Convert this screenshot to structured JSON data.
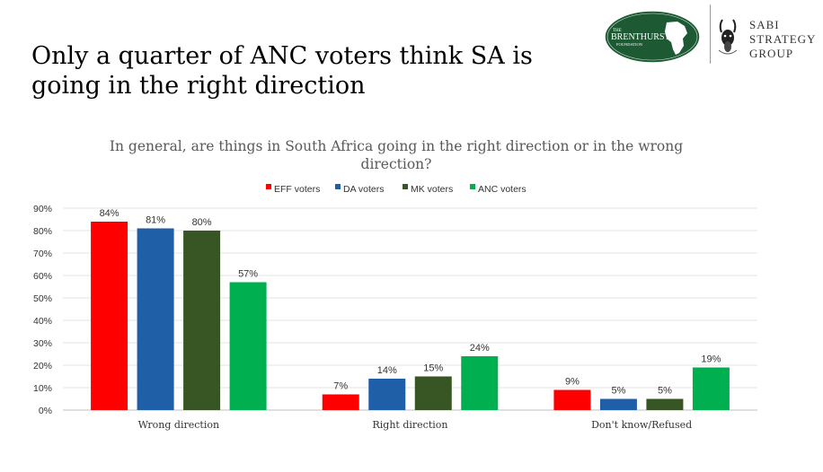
{
  "slide": {
    "title": "Only a quarter of ANC voters think SA is going in the right direction"
  },
  "logos": {
    "brenthurst": {
      "line1": "THE",
      "line2": "BRENTHURST",
      "line3": "FOUNDATION",
      "color": "#1d5a34"
    },
    "sabi": {
      "line1": "SABI",
      "line2": "STRATEGY",
      "line3": "GROUP"
    }
  },
  "chart_data": {
    "type": "bar",
    "title": "In general, are things in South Africa going in the right direction or in the wrong direction?",
    "title_lines": [
      "In general, are things in South Africa going in the right direction or in the wrong",
      "direction?"
    ],
    "categories": [
      "Wrong direction",
      "Right direction",
      "Don't know/Refused"
    ],
    "series": [
      {
        "name": "EFF voters",
        "color": "#ff0000",
        "values": [
          84,
          7,
          9
        ],
        "labels": [
          "84%",
          "7%",
          "9%"
        ]
      },
      {
        "name": "DA voters",
        "color": "#1f5fa8",
        "values": [
          81,
          14,
          5
        ],
        "labels": [
          "81%",
          "14%",
          "5%"
        ]
      },
      {
        "name": "MK voters",
        "color": "#375623",
        "values": [
          80,
          15,
          5
        ],
        "labels": [
          "80%",
          "15%",
          "5%"
        ]
      },
      {
        "name": "ANC voters",
        "color": "#00b050",
        "values": [
          57,
          24,
          19
        ],
        "labels": [
          "57%",
          "24%",
          "19%"
        ]
      }
    ],
    "ylim": [
      0,
      90
    ],
    "yticks": [
      "0%",
      "10%",
      "20%",
      "30%",
      "40%",
      "50%",
      "60%",
      "70%",
      "80%",
      "90%"
    ],
    "xlabel": "",
    "ylabel": "",
    "grid": true,
    "legend_position": "top"
  }
}
